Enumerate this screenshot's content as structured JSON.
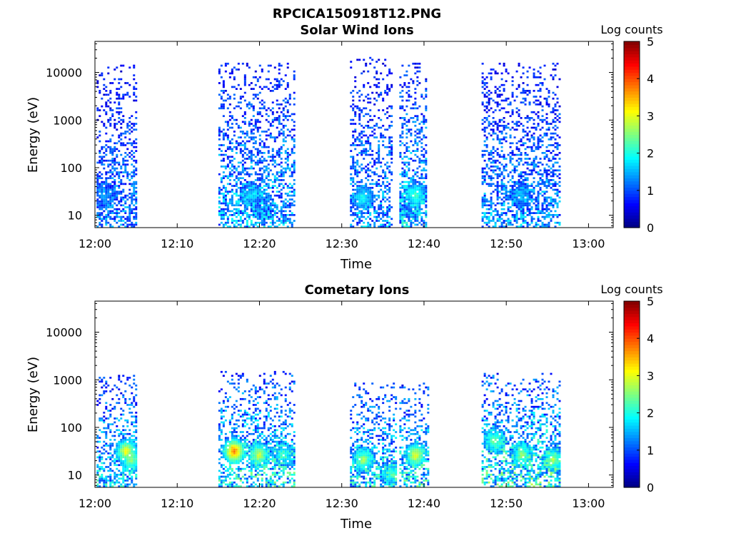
{
  "figure": {
    "title": "RPCICA150918T12.PNG"
  },
  "colorscale": {
    "label": "Log counts",
    "min": 0,
    "max": 5,
    "ticks": [
      "0",
      "1",
      "2",
      "3",
      "4",
      "5"
    ],
    "colors": [
      "#00007f",
      "#0000ff",
      "#007fff",
      "#00ffff",
      "#7fff7f",
      "#ffff00",
      "#ff7f00",
      "#ff0000",
      "#7f0000"
    ]
  },
  "chart_data": [
    {
      "type": "heatmap",
      "title": "Solar Wind Ions",
      "xlabel": "Time",
      "ylabel": "Energy (eV)",
      "xticks": [
        "12:00",
        "12:10",
        "12:20",
        "12:30",
        "12:40",
        "12:50",
        "13:00"
      ],
      "xlim_minutes": [
        0,
        63
      ],
      "yticks": [
        "10",
        "100",
        "1000",
        "10000"
      ],
      "ylim_ev": [
        5.5,
        45000
      ],
      "yscale": "log",
      "bursts": [
        {
          "t_start": 0.2,
          "t_end": 5.1,
          "e_max": 15000,
          "core_level": 1.2,
          "hot": [
            {
              "t": 1.0,
              "e": 25,
              "level": 1.2
            }
          ]
        },
        {
          "t_start": 15.0,
          "t_end": 24.3,
          "e_max": 15000,
          "core_level": 1.4,
          "hot": [
            {
              "t": 18.9,
              "e": 25,
              "level": 1.6
            },
            {
              "t": 20.2,
              "e": 15,
              "level": 1.0
            }
          ]
        },
        {
          "t_start": 31.0,
          "t_end": 36.0,
          "e_max": 20000,
          "core_level": 1.3,
          "hot": [
            {
              "t": 32.4,
              "e": 22,
              "level": 1.9
            }
          ]
        },
        {
          "t_start": 37.0,
          "t_end": 40.3,
          "e_max": 15000,
          "core_level": 1.5,
          "hot": [
            {
              "t": 38.8,
              "e": 25,
              "level": 2.2
            },
            {
              "t": 38.0,
              "e": 15,
              "level": 1.0
            }
          ]
        },
        {
          "t_start": 47.0,
          "t_end": 56.5,
          "e_max": 15000,
          "core_level": 1.3,
          "hot": [
            {
              "t": 51.7,
              "e": 25,
              "level": 1.4
            }
          ]
        }
      ]
    },
    {
      "type": "heatmap",
      "title": "Cometary Ions",
      "xlabel": "Time",
      "ylabel": "Energy (eV)",
      "xticks": [
        "12:00",
        "12:10",
        "12:20",
        "12:30",
        "12:40",
        "12:50",
        "13:00"
      ],
      "xlim_minutes": [
        0,
        63
      ],
      "yticks": [
        "10",
        "100",
        "1000",
        "10000"
      ],
      "ylim_ev": [
        5.5,
        45000
      ],
      "yscale": "log",
      "bursts": [
        {
          "t_start": 0.2,
          "t_end": 5.1,
          "e_max": 1200,
          "core_level": 1.6,
          "hot": [
            {
              "t": 3.7,
              "e": 30,
              "level": 3.1
            },
            {
              "t": 4.3,
              "e": 20,
              "level": 2.6
            }
          ]
        },
        {
          "t_start": 15.0,
          "t_end": 24.3,
          "e_max": 1500,
          "core_level": 1.8,
          "hot": [
            {
              "t": 16.8,
              "e": 30,
              "level": 3.8
            },
            {
              "t": 19.8,
              "e": 25,
              "level": 2.8
            },
            {
              "t": 22.8,
              "e": 25,
              "level": 2.1
            }
          ]
        },
        {
          "t_start": 31.0,
          "t_end": 36.5,
          "e_max": 800,
          "core_level": 1.7,
          "hot": [
            {
              "t": 32.5,
              "e": 20,
              "level": 2.6
            },
            {
              "t": 35.9,
              "e": 10,
              "level": 2.1
            }
          ]
        },
        {
          "t_start": 37.0,
          "t_end": 40.5,
          "e_max": 800,
          "core_level": 1.8,
          "hot": [
            {
              "t": 38.9,
              "e": 25,
              "level": 3.0
            }
          ]
        },
        {
          "t_start": 47.0,
          "t_end": 56.5,
          "e_max": 1300,
          "core_level": 1.9,
          "hot": [
            {
              "t": 48.5,
              "e": 50,
              "level": 2.4
            },
            {
              "t": 51.8,
              "e": 25,
              "level": 2.5
            },
            {
              "t": 55.6,
              "e": 20,
              "level": 2.6
            }
          ]
        }
      ]
    }
  ]
}
